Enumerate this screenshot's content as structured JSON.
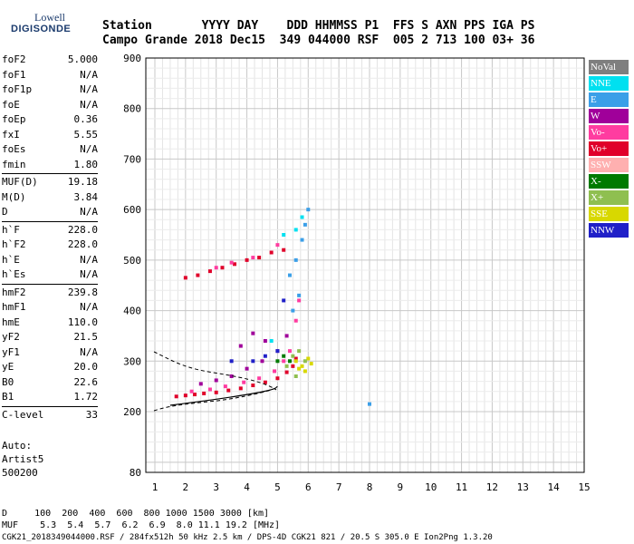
{
  "logo": {
    "line1": "Lowell",
    "line2": "DIGISONDE"
  },
  "header": {
    "row1": "Station       YYYY DAY    DDD HHMMSS P1  FFS S AXN PPS IGA PS",
    "row2": "Campo Grande 2018 Dec15  349 044000 RSF  005 2 713 100 03+ 36"
  },
  "params_group1": [
    {
      "label": "foF2",
      "value": "5.000"
    },
    {
      "label": "foF1",
      "value": "N/A"
    },
    {
      "label": "foF1p",
      "value": "N/A"
    },
    {
      "label": "foE",
      "value": "N/A"
    },
    {
      "label": "foEp",
      "value": "0.36"
    },
    {
      "label": "fxI",
      "value": "5.55"
    },
    {
      "label": "foEs",
      "value": "N/A"
    },
    {
      "label": "fmin",
      "value": "1.80"
    }
  ],
  "params_group2": [
    {
      "label": "MUF(D)",
      "value": "19.18"
    },
    {
      "label": "M(D)",
      "value": "3.84"
    },
    {
      "label": "D",
      "value": "N/A"
    }
  ],
  "params_group3": [
    {
      "label": "h`F",
      "value": "228.0"
    },
    {
      "label": "h`F2",
      "value": "228.0"
    },
    {
      "label": "h`E",
      "value": "N/A"
    },
    {
      "label": "h`Es",
      "value": "N/A"
    }
  ],
  "params_group4": [
    {
      "label": "hmF2",
      "value": "239.8"
    },
    {
      "label": "hmF1",
      "value": "N/A"
    },
    {
      "label": "hmE",
      "value": "110.0"
    },
    {
      "label": "yF2",
      "value": "21.5"
    },
    {
      "label": "yF1",
      "value": "N/A"
    },
    {
      "label": "yE",
      "value": "20.0"
    },
    {
      "label": "B0",
      "value": "22.6"
    },
    {
      "label": "B1",
      "value": "1.72"
    }
  ],
  "params_group5": [
    {
      "label": "C-level",
      "value": "33"
    }
  ],
  "autoscale": {
    "line1": "Auto:",
    "line2": "Artist5",
    "line3": "500200"
  },
  "legend": [
    {
      "label": "NoVal",
      "color": "#7f7f7f"
    },
    {
      "label": "NNE",
      "color": "#00e0f0"
    },
    {
      "label": "E",
      "color": "#3b9fe8"
    },
    {
      "label": "W",
      "color": "#a0009a"
    },
    {
      "label": "Vo-",
      "color": "#ff3ca0"
    },
    {
      "label": "Vo+",
      "color": "#e0002a"
    },
    {
      "label": "SSW",
      "color": "#ffb0b0"
    },
    {
      "label": "X-",
      "color": "#007a00"
    },
    {
      "label": "X+",
      "color": "#8fbf50"
    },
    {
      "label": "SSE",
      "color": "#d8d800"
    },
    {
      "label": "NNW",
      "color": "#2020c8"
    }
  ],
  "footer": {
    "d_row": "D     100  200  400  600  800 1000 1500 3000 [km]",
    "muf_row": "MUF    5.3  5.4  5.7  6.2  6.9  8.0 11.1 19.2 [MHz]",
    "info_row": "CGK21_2018349044000.RSF / 284fx512h 50 kHz 2.5 km / DPS-4D CGK21 821 / 20.5 S 305.0 E Ion2Png 1.3.20"
  },
  "chart_data": {
    "type": "scatter",
    "xlim": [
      1,
      15
    ],
    "ylim": [
      80,
      900
    ],
    "x_ticks": [
      "1",
      "2",
      "3",
      "4",
      "5",
      "6",
      "7",
      "8",
      "9",
      "10",
      "11",
      "12",
      "13",
      "14",
      "15"
    ],
    "y_ticks": [
      "80",
      "200",
      "300",
      "400",
      "500",
      "600",
      "700",
      "800",
      "900"
    ],
    "grid": true,
    "series": [
      {
        "name": "Vo+",
        "points": [
          [
            1.7,
            230
          ],
          [
            2.0,
            232
          ],
          [
            2.3,
            234
          ],
          [
            2.6,
            236
          ],
          [
            3.0,
            238
          ],
          [
            3.4,
            242
          ],
          [
            3.8,
            246
          ],
          [
            4.2,
            252
          ],
          [
            4.6,
            258
          ],
          [
            5.0,
            266
          ],
          [
            5.3,
            278
          ],
          [
            5.5,
            290
          ],
          [
            5.6,
            305
          ],
          [
            2.0,
            465
          ],
          [
            2.4,
            470
          ],
          [
            2.8,
            478
          ],
          [
            3.2,
            485
          ],
          [
            3.6,
            492
          ],
          [
            4.0,
            500
          ],
          [
            4.4,
            505
          ],
          [
            4.8,
            515
          ],
          [
            5.2,
            520
          ]
        ]
      },
      {
        "name": "Vo-",
        "points": [
          [
            2.2,
            240
          ],
          [
            2.8,
            244
          ],
          [
            3.3,
            250
          ],
          [
            3.9,
            258
          ],
          [
            4.4,
            266
          ],
          [
            4.9,
            280
          ],
          [
            5.2,
            300
          ],
          [
            5.4,
            320
          ],
          [
            5.6,
            380
          ],
          [
            5.7,
            420
          ],
          [
            3.0,
            485
          ],
          [
            3.5,
            495
          ],
          [
            4.2,
            505
          ],
          [
            5.0,
            530
          ]
        ]
      },
      {
        "name": "W",
        "points": [
          [
            2.5,
            255
          ],
          [
            3.0,
            262
          ],
          [
            3.5,
            270
          ],
          [
            4.0,
            285
          ],
          [
            4.5,
            300
          ],
          [
            5.0,
            320
          ],
          [
            5.3,
            350
          ],
          [
            4.6,
            340
          ],
          [
            3.8,
            330
          ],
          [
            4.2,
            355
          ]
        ]
      },
      {
        "name": "E",
        "points": [
          [
            5.4,
            470
          ],
          [
            5.6,
            500
          ],
          [
            5.8,
            540
          ],
          [
            5.9,
            570
          ],
          [
            6.0,
            600
          ],
          [
            5.7,
            430
          ],
          [
            5.5,
            400
          ],
          [
            8.0,
            215
          ]
        ]
      },
      {
        "name": "NNE",
        "points": [
          [
            5.6,
            560
          ],
          [
            5.8,
            585
          ],
          [
            5.2,
            550
          ],
          [
            4.8,
            340
          ]
        ]
      },
      {
        "name": "SSE",
        "points": [
          [
            5.6,
            300
          ],
          [
            5.8,
            290
          ],
          [
            6.0,
            305
          ],
          [
            6.1,
            295
          ],
          [
            5.9,
            280
          ],
          [
            5.7,
            285
          ]
        ]
      },
      {
        "name": "X+",
        "points": [
          [
            5.5,
            310
          ],
          [
            5.7,
            320
          ],
          [
            5.9,
            300
          ],
          [
            5.3,
            290
          ],
          [
            5.6,
            270
          ]
        ]
      },
      {
        "name": "X-",
        "points": [
          [
            5.0,
            300
          ],
          [
            5.2,
            310
          ],
          [
            5.4,
            300
          ]
        ]
      },
      {
        "name": "NNW",
        "points": [
          [
            4.2,
            300
          ],
          [
            4.6,
            310
          ],
          [
            5.0,
            320
          ],
          [
            5.2,
            420
          ],
          [
            3.5,
            300
          ]
        ]
      }
    ]
  }
}
